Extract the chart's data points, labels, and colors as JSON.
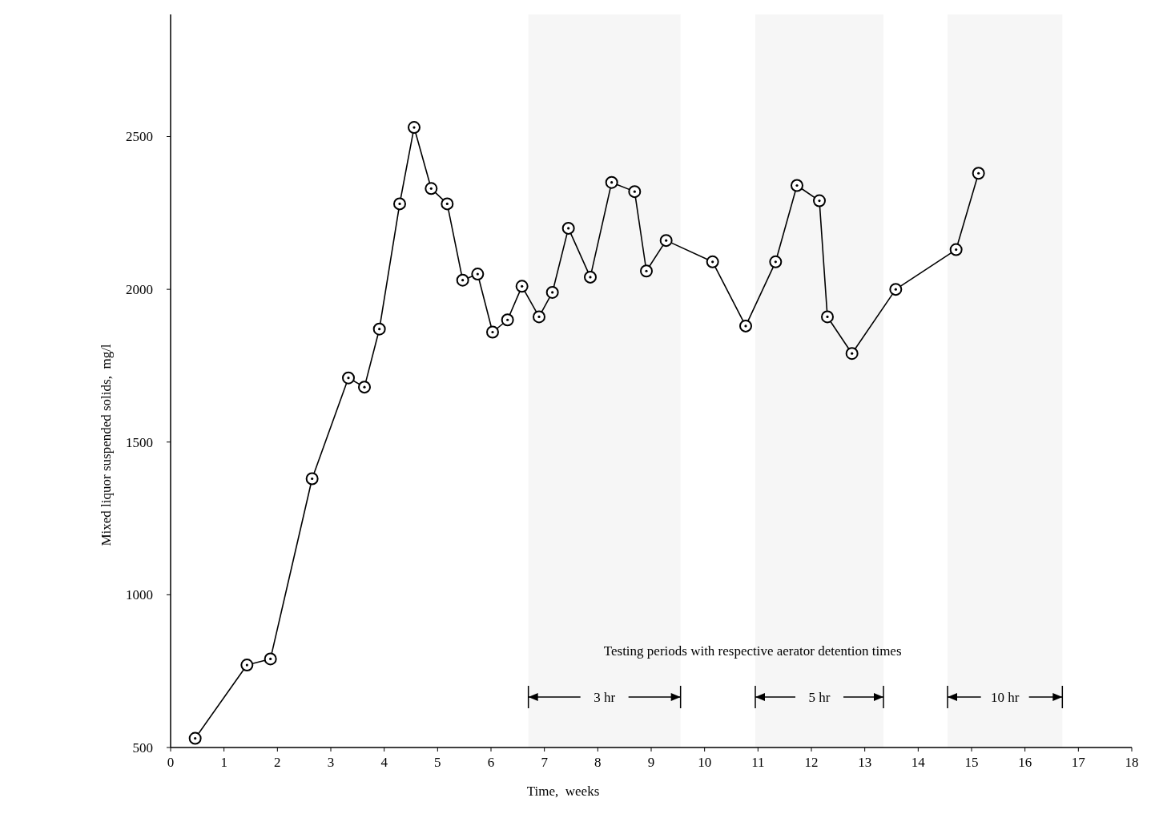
{
  "chart_data": {
    "type": "line",
    "xlabel": "Time,  weeks",
    "ylabel": "Mixed liquor suspended solids,  mg/l",
    "x": [
      0.46,
      1.43,
      1.87,
      2.65,
      3.33,
      3.63,
      3.91,
      4.29,
      4.56,
      4.88,
      5.18,
      5.47,
      5.75,
      6.03,
      6.31,
      6.58,
      6.9,
      7.15,
      7.45,
      7.86,
      8.26,
      8.69,
      8.91,
      9.28,
      10.15,
      10.77,
      11.33,
      11.73,
      12.15,
      12.3,
      12.76,
      13.58,
      14.71,
      15.13
    ],
    "series": [
      {
        "color": "#000000",
        "values": [
          530,
          770,
          790,
          1380,
          1710,
          1680,
          1870,
          2280,
          2530,
          2330,
          2280,
          2030,
          2050,
          1860,
          1900,
          2010,
          1910,
          1990,
          2200,
          2040,
          2350,
          2320,
          2060,
          2160,
          2090,
          1880,
          2090,
          2340,
          2290,
          1910,
          1790,
          2000,
          2130,
          2380
        ]
      }
    ],
    "xlim": [
      0,
      18
    ],
    "xticks": [
      0,
      1,
      2,
      3,
      4,
      5,
      6,
      7,
      8,
      9,
      10,
      11,
      12,
      13,
      14,
      15,
      16,
      17,
      18
    ],
    "ylim": [
      500,
      2900
    ],
    "yticks": [
      500,
      1000,
      1500,
      2000,
      2500
    ],
    "grid": false,
    "marker": "circle",
    "line_style": "solid",
    "annotations": [
      "Testing periods with respective aerator detention times"
    ],
    "bands": [
      {
        "axis": "x",
        "from": 6.7,
        "to": 9.55,
        "label": "3 hr"
      },
      {
        "axis": "x",
        "from": 10.95,
        "to": 13.35,
        "label": "5 hr"
      },
      {
        "axis": "x",
        "from": 14.55,
        "to": 16.7,
        "label": "10 hr"
      }
    ]
  }
}
